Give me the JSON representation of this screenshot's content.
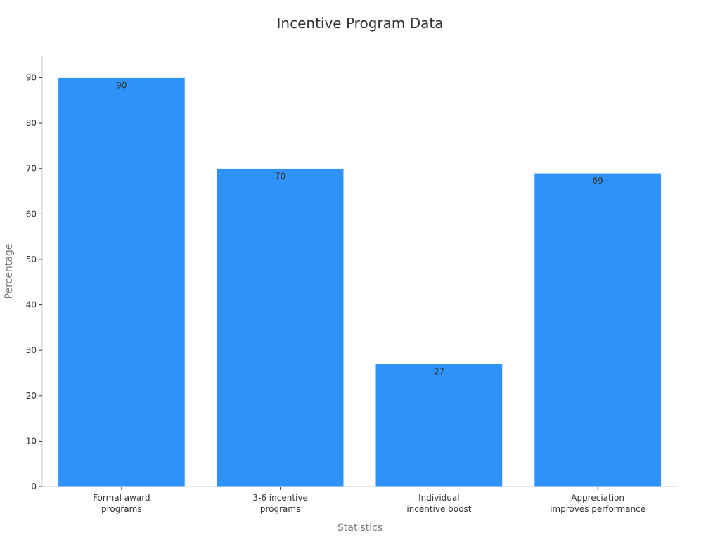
{
  "chart_data": {
    "type": "bar",
    "title": "Incentive Program Data",
    "xlabel": "Statistics",
    "ylabel": "Percentage",
    "categories": [
      [
        "Formal award",
        "programs"
      ],
      [
        "3-6 incentive",
        "programs"
      ],
      [
        "Individual",
        "incentive boost"
      ],
      [
        "Appreciation",
        "improves performance"
      ]
    ],
    "values": [
      90,
      70,
      27,
      69
    ],
    "ylim": [
      0,
      95
    ],
    "yticks": [
      0,
      10,
      20,
      30,
      40,
      50,
      60,
      70,
      80,
      90
    ],
    "grid": false,
    "bar_color": "#2f92f8",
    "show_data_labels": true
  }
}
